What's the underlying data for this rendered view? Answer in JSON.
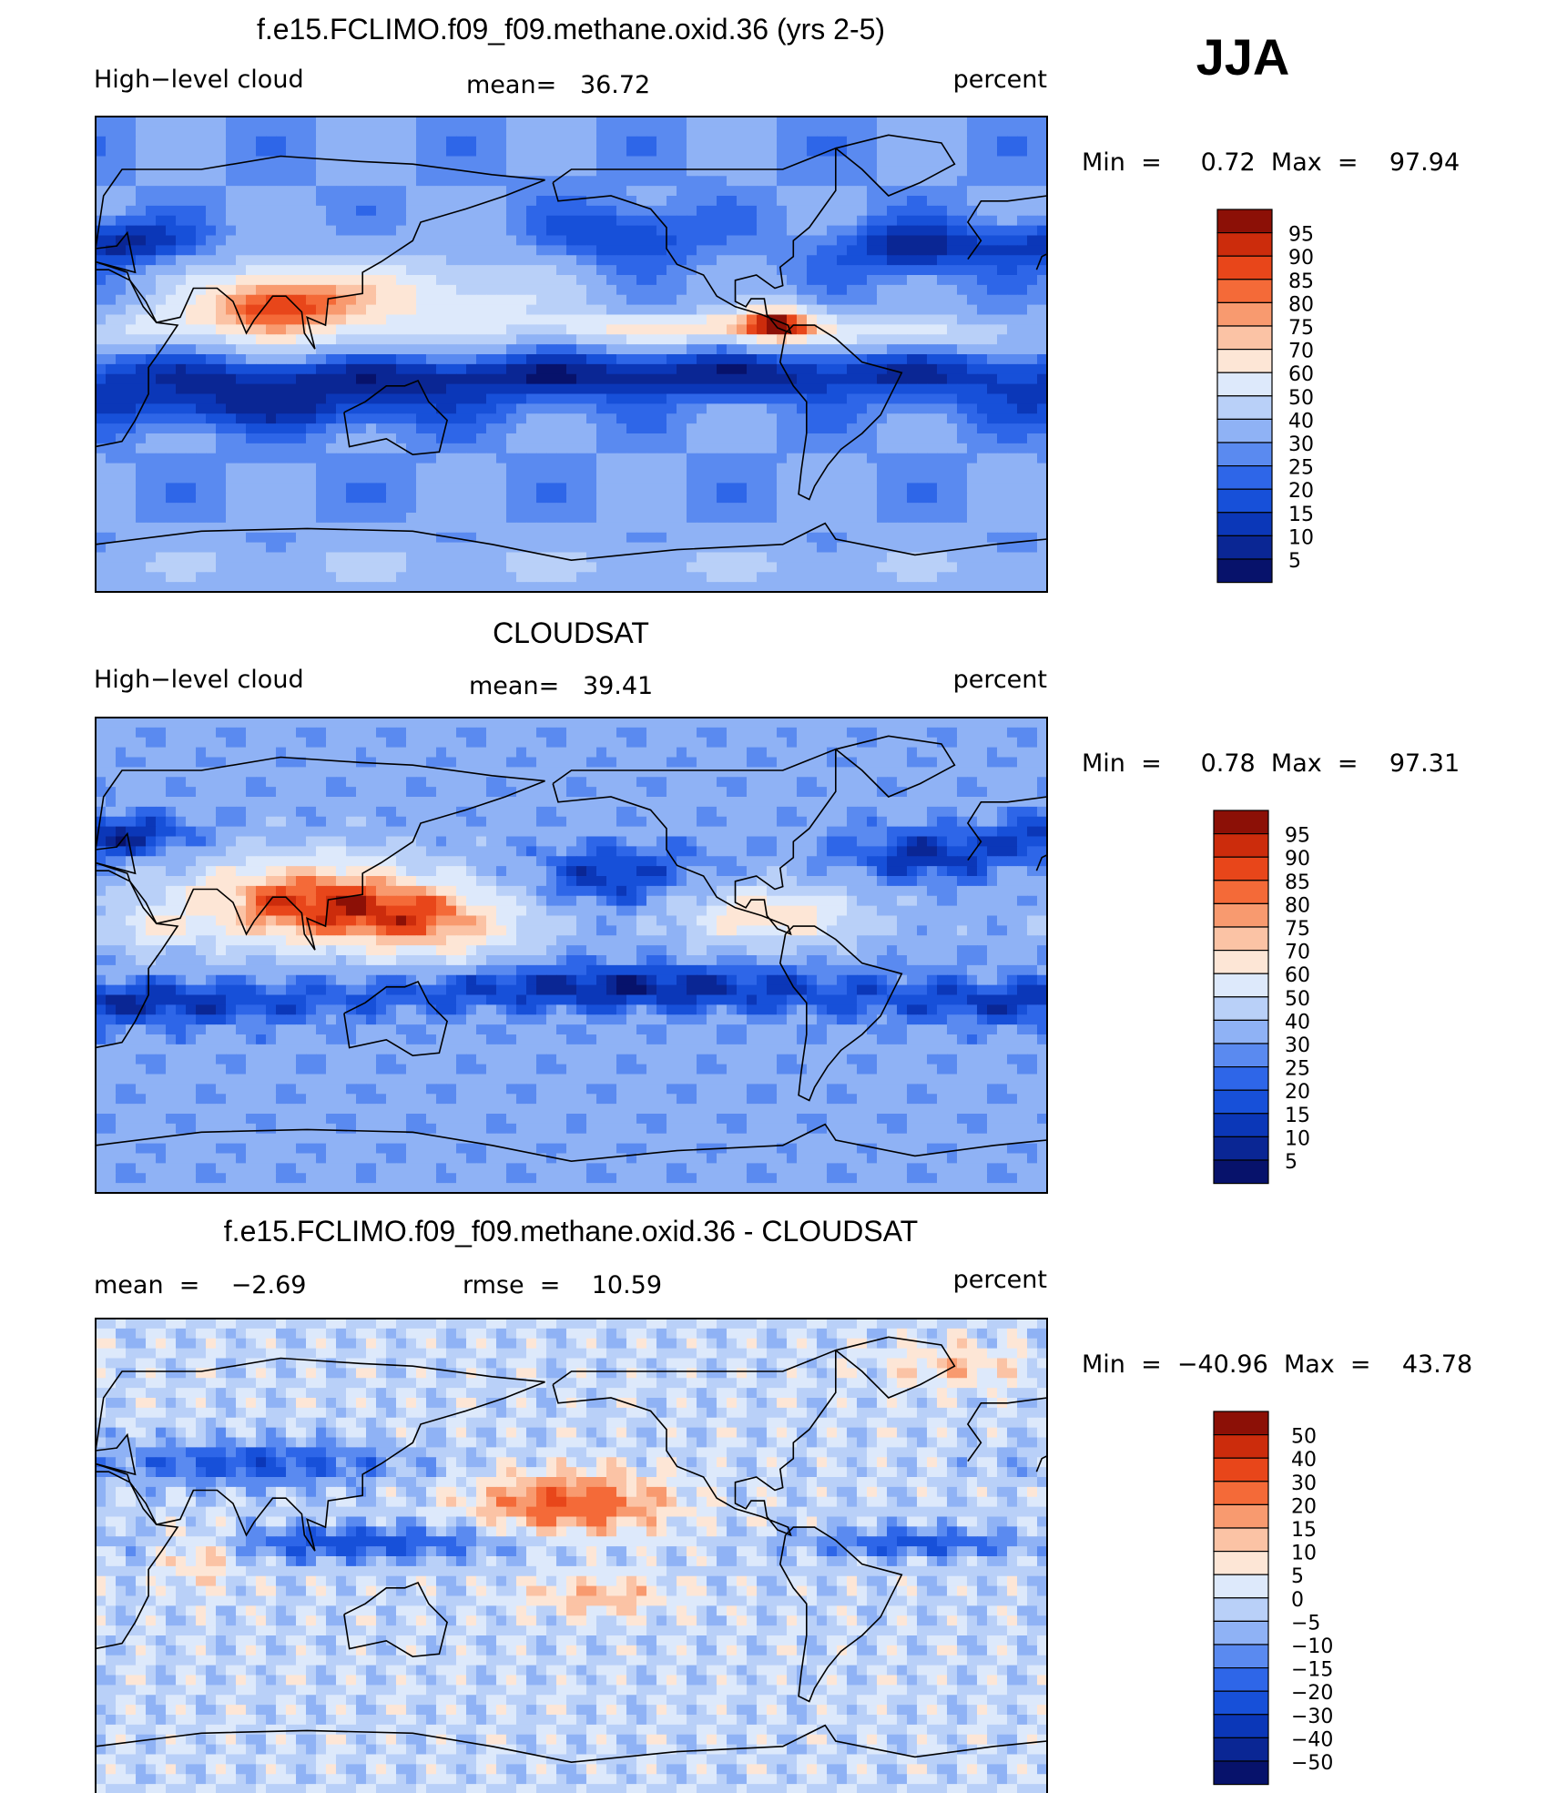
{
  "season": "JJA",
  "colors": {
    "abs": [
      "#07126b",
      "#0a2694",
      "#0b37b8",
      "#1750d9",
      "#2e66e8",
      "#5a8af0",
      "#8fb2f5",
      "#b9d0f8",
      "#dde9fb",
      "#fde6d6",
      "#fbc3a5",
      "#f89a6f",
      "#f46a38",
      "#e8461a",
      "#cc2c0c",
      "#8c1006"
    ],
    "diff": [
      "#07126b",
      "#0a2694",
      "#0b37b8",
      "#1750d9",
      "#2e66e8",
      "#5a8af0",
      "#8fb2f5",
      "#b9d0f8",
      "#dde9fb",
      "#fde6d6",
      "#fbc3a5",
      "#f89a6f",
      "#f46a38",
      "#e8461a",
      "#cc2c0c",
      "#8c1006"
    ]
  },
  "panels": [
    {
      "title": "f.e15.FCLIMO.f09_f09.methane.oxid.36 (yrs 2-5)",
      "left_label": "High−level cloud",
      "center_label": "mean=   36.72",
      "right_label": "percent",
      "minmax": "Min  =     0.72  Max  =    97.94",
      "colorbar_labels": [
        "95",
        "90",
        "85",
        "80",
        "75",
        "70",
        "60",
        "50",
        "40",
        "30",
        "25",
        "20",
        "15",
        "10",
        "5"
      ]
    },
    {
      "title": "CLOUDSAT",
      "left_label": "High−level cloud",
      "center_label": "mean=   39.41",
      "right_label": "percent",
      "minmax": "Min  =     0.78  Max  =    97.31",
      "colorbar_labels": [
        "95",
        "90",
        "85",
        "80",
        "75",
        "70",
        "60",
        "50",
        "40",
        "30",
        "25",
        "20",
        "15",
        "10",
        "5"
      ]
    },
    {
      "title": "f.e15.FCLIMO.f09_f09.methane.oxid.36 - CLOUDSAT",
      "left_label": "mean  =    −2.69",
      "center_label": "rmse  =    10.59",
      "right_label": "percent",
      "minmax": "Min  =  −40.96  Max  =    43.78",
      "colorbar_labels": [
        "50",
        "40",
        "30",
        "20",
        "15",
        "10",
        "5",
        "0",
        "−5",
        "−10",
        "−15",
        "−20",
        "−30",
        "−40",
        "−50"
      ]
    }
  ],
  "chart_data": {
    "type": "heatmap",
    "variable": "High-level cloud",
    "units": "percent",
    "season": "JJA",
    "maps": [
      {
        "name": "f.e15.FCLIMO.f09_f09.methane.oxid.36 (yrs 2-5)",
        "mean": 36.72,
        "min": 0.72,
        "max": 97.94,
        "levels": [
          5,
          10,
          15,
          20,
          25,
          30,
          40,
          50,
          60,
          70,
          75,
          80,
          85,
          90,
          95
        ]
      },
      {
        "name": "CLOUDSAT",
        "mean": 39.41,
        "min": 0.78,
        "max": 97.31,
        "levels": [
          5,
          10,
          15,
          20,
          25,
          30,
          40,
          50,
          60,
          70,
          75,
          80,
          85,
          90,
          95
        ]
      },
      {
        "name": "f.e15.FCLIMO.f09_f09.methane.oxid.36 - CLOUDSAT",
        "mean": -2.69,
        "rmse": 10.59,
        "min": -40.96,
        "max": 43.78,
        "levels": [
          -50,
          -40,
          -30,
          -20,
          -15,
          -10,
          -5,
          0,
          5,
          10,
          15,
          20,
          30,
          40,
          50
        ]
      }
    ]
  }
}
